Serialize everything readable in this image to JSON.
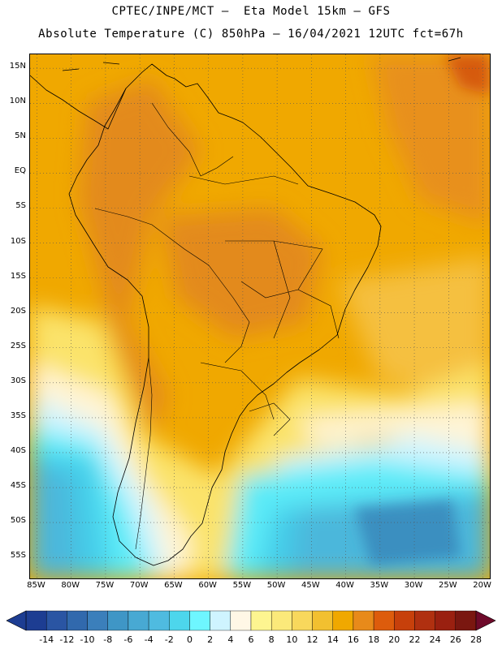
{
  "header": {
    "line1": "CPTEC/INPE/MCT –  Eta Model 15km – GFS",
    "line2": "Absolute Temperature (C) 850hPa – 16/04/2021 12UTC fct=67h"
  },
  "map": {
    "lon_range": [
      -86,
      -19
    ],
    "lat_range": [
      -58,
      17
    ],
    "lat_ticks": [
      {
        "value": 15,
        "label": "15N"
      },
      {
        "value": 10,
        "label": "10N"
      },
      {
        "value": 5,
        "label": "5N"
      },
      {
        "value": 0,
        "label": "EQ"
      },
      {
        "value": -5,
        "label": "5S"
      },
      {
        "value": -10,
        "label": "10S"
      },
      {
        "value": -15,
        "label": "15S"
      },
      {
        "value": -20,
        "label": "20S"
      },
      {
        "value": -25,
        "label": "25S"
      },
      {
        "value": -30,
        "label": "30S"
      },
      {
        "value": -35,
        "label": "35S"
      },
      {
        "value": -40,
        "label": "40S"
      },
      {
        "value": -45,
        "label": "45S"
      },
      {
        "value": -50,
        "label": "50S"
      },
      {
        "value": -55,
        "label": "55S"
      }
    ],
    "lon_ticks": [
      {
        "value": -85,
        "label": "85W"
      },
      {
        "value": -80,
        "label": "80W"
      },
      {
        "value": -75,
        "label": "75W"
      },
      {
        "value": -70,
        "label": "70W"
      },
      {
        "value": -65,
        "label": "65W"
      },
      {
        "value": -60,
        "label": "60W"
      },
      {
        "value": -55,
        "label": "55W"
      },
      {
        "value": -50,
        "label": "50W"
      },
      {
        "value": -45,
        "label": "45W"
      },
      {
        "value": -40,
        "label": "40W"
      },
      {
        "value": -35,
        "label": "35W"
      },
      {
        "value": -30,
        "label": "30W"
      },
      {
        "value": -25,
        "label": "25W"
      },
      {
        "value": -20,
        "label": "20W"
      }
    ],
    "gridlines": "dotted",
    "field_zones": [
      {
        "name": "background-warm",
        "level": 18,
        "color": "#f0a800"
      },
      {
        "name": "north-atlantic-warm",
        "level": 20,
        "color": "#e8901a"
      },
      {
        "name": "caribbean-hot",
        "level": 24,
        "color": "#d65a10"
      },
      {
        "name": "central-brazil-warm",
        "level": 20,
        "color": "#e38a1e"
      },
      {
        "name": "andes-warm",
        "level": 20,
        "color": "#e38a1e"
      },
      {
        "name": "east-atlantic-mild",
        "level": 16,
        "color": "#f5c040"
      },
      {
        "name": "subtropical-yellow",
        "level": 12,
        "color": "#fbe36a"
      },
      {
        "name": "cream-band",
        "level": 8,
        "color": "#fff4d6"
      },
      {
        "name": "pale-cyan",
        "level": 4,
        "color": "#cff4ff"
      },
      {
        "name": "cyan",
        "level": 2,
        "color": "#5cebf8"
      },
      {
        "name": "sky",
        "level": 0,
        "color": "#44cde9"
      },
      {
        "name": "cool-blue",
        "level": -2,
        "color": "#4cb7db"
      },
      {
        "name": "deep-blue",
        "level": -6,
        "color": "#3a8fc0"
      }
    ]
  },
  "colorbar": {
    "colors": [
      "#1d3d92",
      "#2a55a3",
      "#3169ad",
      "#3b7fbb",
      "#3f96c6",
      "#48a9d3",
      "#4fbbe0",
      "#4dd6ec",
      "#6ef6ff",
      "#cff4ff",
      "#fff7e6",
      "#fdf590",
      "#fbe97a",
      "#f8d85c",
      "#f2c030",
      "#f0a800",
      "#e88a1a",
      "#dd5c0c",
      "#c7400b",
      "#b03010",
      "#9a2010",
      "#7a1710"
    ],
    "ends": {
      "low": "#1d3d92",
      "high": "#6e0a2a"
    },
    "labels": [
      "-14",
      "-12",
      "-10",
      "-8",
      "-6",
      "-4",
      "-2",
      "0",
      "2",
      "4",
      "6",
      "8",
      "10",
      "12",
      "14",
      "16",
      "18",
      "20",
      "22",
      "24",
      "26",
      "28"
    ]
  }
}
